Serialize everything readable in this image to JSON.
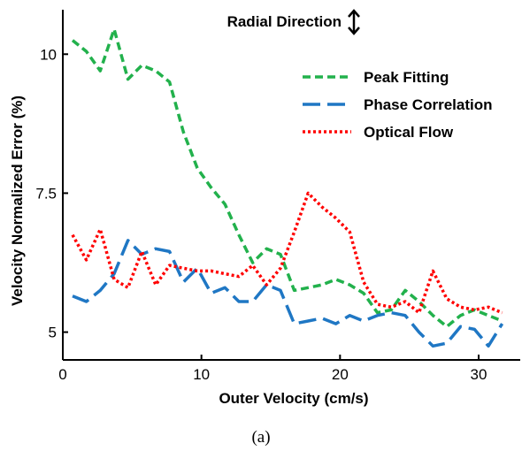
{
  "chart_data": {
    "type": "line",
    "xlabel": "Outer Velocity (cm/s)",
    "ylabel": "Velocity Normalized Error (%)",
    "xlim": [
      0,
      33
    ],
    "ylim": [
      4.5,
      10.8
    ],
    "xticks": [
      0,
      10,
      20,
      30
    ],
    "yticks": [
      5,
      7.5,
      10
    ],
    "ytick_labels": [
      "5",
      "7.5",
      "10"
    ],
    "annotation": "Radial Direction",
    "caption": "(a)",
    "legend_position": "top-right",
    "series": [
      {
        "name": "Peak Fitting",
        "color": "#22b14c",
        "dash": "dashed",
        "x": [
          0.7,
          1.7,
          2.7,
          3.7,
          4.7,
          5.7,
          6.7,
          7.7,
          8.7,
          9.7,
          10.7,
          11.7,
          12.7,
          13.7,
          14.7,
          15.7,
          16.7,
          17.7,
          18.7,
          19.7,
          20.7,
          21.7,
          22.7,
          23.7,
          24.7,
          25.7,
          26.7,
          27.7,
          28.7,
          29.7,
          30.7,
          31.7
        ],
        "y": [
          10.25,
          10.05,
          9.7,
          10.45,
          9.55,
          9.8,
          9.7,
          9.5,
          8.6,
          7.95,
          7.6,
          7.3,
          6.75,
          6.25,
          6.5,
          6.4,
          5.75,
          5.8,
          5.85,
          5.95,
          5.85,
          5.7,
          5.35,
          5.4,
          5.75,
          5.55,
          5.3,
          5.1,
          5.3,
          5.4,
          5.3,
          5.2
        ]
      },
      {
        "name": "Phase Correlation",
        "color": "#1f77c4",
        "dash": "long-dashed",
        "x": [
          0.7,
          1.7,
          2.7,
          3.7,
          4.7,
          5.7,
          6.7,
          7.7,
          8.7,
          9.7,
          10.7,
          11.7,
          12.7,
          13.7,
          14.7,
          15.7,
          16.7,
          17.7,
          18.7,
          19.7,
          20.7,
          21.7,
          22.7,
          23.7,
          24.7,
          25.7,
          26.7,
          27.7,
          28.7,
          29.7,
          30.7,
          31.7
        ],
        "y": [
          5.65,
          5.55,
          5.75,
          6.05,
          6.65,
          6.4,
          6.5,
          6.45,
          5.9,
          6.15,
          5.7,
          5.8,
          5.55,
          5.55,
          5.85,
          5.75,
          5.15,
          5.2,
          5.25,
          5.15,
          5.3,
          5.2,
          5.3,
          5.35,
          5.3,
          5.0,
          4.75,
          4.8,
          5.1,
          5.05,
          4.75,
          5.15
        ]
      },
      {
        "name": "Optical Flow",
        "color": "#ff0000",
        "dash": "dotted",
        "x": [
          0.7,
          1.7,
          2.7,
          3.7,
          4.7,
          5.7,
          6.7,
          7.7,
          8.7,
          9.7,
          10.7,
          11.7,
          12.7,
          13.7,
          14.7,
          15.7,
          16.7,
          17.7,
          18.7,
          19.7,
          20.7,
          21.7,
          22.7,
          23.7,
          24.7,
          25.7,
          26.7,
          27.7,
          28.7,
          29.7,
          30.7,
          31.7
        ],
        "y": [
          6.75,
          6.3,
          6.85,
          5.95,
          5.8,
          6.45,
          5.85,
          6.2,
          6.15,
          6.1,
          6.1,
          6.05,
          6.0,
          6.2,
          5.85,
          6.15,
          6.8,
          7.5,
          7.25,
          7.05,
          6.8,
          5.9,
          5.5,
          5.45,
          5.55,
          5.35,
          6.1,
          5.6,
          5.45,
          5.4,
          5.45,
          5.35
        ]
      }
    ]
  }
}
